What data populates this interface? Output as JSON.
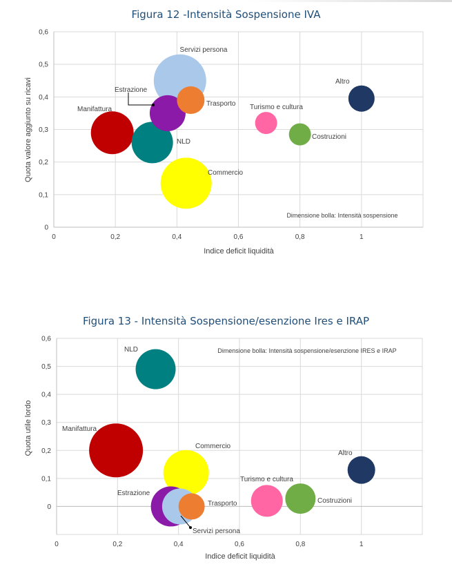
{
  "page": {
    "figure1_title": "Figura 12 -Intensità Sospensione IVA",
    "figure2_title": "Figura 13 - Intensità Sospensione/esenzione Ires e IRAP"
  },
  "chart_data": [
    {
      "type": "bubble",
      "title": "Figura 12 -Intensità Sospensione IVA",
      "xlabel": "Indice deficit liquidità",
      "ylabel": "Quota valore aggiunto su ricavi",
      "xlim": [
        0,
        1.2
      ],
      "ylim": [
        0,
        0.6
      ],
      "xticks": [
        "0",
        "0,2",
        "0,4",
        "0,6",
        "0,8",
        "1"
      ],
      "yticks": [
        "0",
        "0,1",
        "0,2",
        "0,3",
        "0,4",
        "0,5",
        "0,6"
      ],
      "xtick_values": [
        0,
        0.2,
        0.4,
        0.6,
        0.8,
        1
      ],
      "ytick_values": [
        0,
        0.1,
        0.2,
        0.3,
        0.4,
        0.5,
        0.6
      ],
      "grid": true,
      "annotation": "Dimensione bolla: Intensità sospensione",
      "points": [
        {
          "name": "Servizi persona",
          "x": 0.41,
          "y": 0.45,
          "size": 38,
          "color": "#a9c8ea"
        },
        {
          "name": "Commercio",
          "x": 0.43,
          "y": 0.135,
          "size": 37,
          "color": "#ffff00"
        },
        {
          "name": "Manifattura",
          "x": 0.19,
          "y": 0.29,
          "size": 31,
          "color": "#c00000"
        },
        {
          "name": "NLD",
          "x": 0.32,
          "y": 0.26,
          "size": 30,
          "color": "#008080"
        },
        {
          "name": "Estrazione",
          "x": 0.37,
          "y": 0.35,
          "size": 26,
          "color": "#8b1aa8"
        },
        {
          "name": "Trasporto",
          "x": 0.445,
          "y": 0.39,
          "size": 20,
          "color": "#ed7d31"
        },
        {
          "name": "Altro",
          "x": 1.0,
          "y": 0.395,
          "size": 19,
          "color": "#203864"
        },
        {
          "name": "Turismo e cultura",
          "x": 0.69,
          "y": 0.32,
          "size": 16,
          "color": "#ff66a3"
        },
        {
          "name": "Costruzioni",
          "x": 0.8,
          "y": 0.285,
          "size": 16,
          "color": "#70ad47"
        }
      ]
    },
    {
      "type": "bubble",
      "title": "Figura 13 - Intensità Sospensione/esenzione Ires e IRAP",
      "xlabel": "Indice deficit liquidità",
      "ylabel": "Quota utile lordo",
      "xlim": [
        0,
        1.2
      ],
      "ylim": [
        -0.1,
        0.6
      ],
      "xticks": [
        "0",
        "0,2",
        "0,4",
        "0,6",
        "0,8",
        "1"
      ],
      "yticks": [
        "0",
        "0,1",
        "0,2",
        "0,3",
        "0,4",
        "0,5",
        "0,6"
      ],
      "xtick_values": [
        0,
        0.2,
        0.4,
        0.6,
        0.8,
        1
      ],
      "ytick_values": [
        0,
        0.1,
        0.2,
        0.3,
        0.4,
        0.5,
        0.6
      ],
      "grid": true,
      "annotation": "Dimensione bolla: Intensità sospensione/esenzione IRES e IRAP",
      "points": [
        {
          "name": "Manifattura",
          "x": 0.195,
          "y": 0.2,
          "size": 39,
          "color": "#c00000"
        },
        {
          "name": "Commercio",
          "x": 0.425,
          "y": 0.12,
          "size": 33,
          "color": "#ffff00"
        },
        {
          "name": "NLD",
          "x": 0.325,
          "y": 0.49,
          "size": 29,
          "color": "#008080"
        },
        {
          "name": "Estrazione",
          "x": 0.375,
          "y": 0.0,
          "size": 29,
          "color": "#8b1aa8"
        },
        {
          "name": "Servizi persona",
          "x": 0.405,
          "y": 0.0,
          "size": 26,
          "color": "#a9c8ea"
        },
        {
          "name": "Turismo e cultura",
          "x": 0.69,
          "y": 0.02,
          "size": 23,
          "color": "#ff66a3"
        },
        {
          "name": "Costruzioni",
          "x": 0.8,
          "y": 0.028,
          "size": 22,
          "color": "#70ad47"
        },
        {
          "name": "Trasporto",
          "x": 0.443,
          "y": 0.0,
          "size": 19,
          "color": "#ed7d31"
        },
        {
          "name": "Altro",
          "x": 1.0,
          "y": 0.13,
          "size": 20,
          "color": "#203864"
        }
      ]
    }
  ]
}
